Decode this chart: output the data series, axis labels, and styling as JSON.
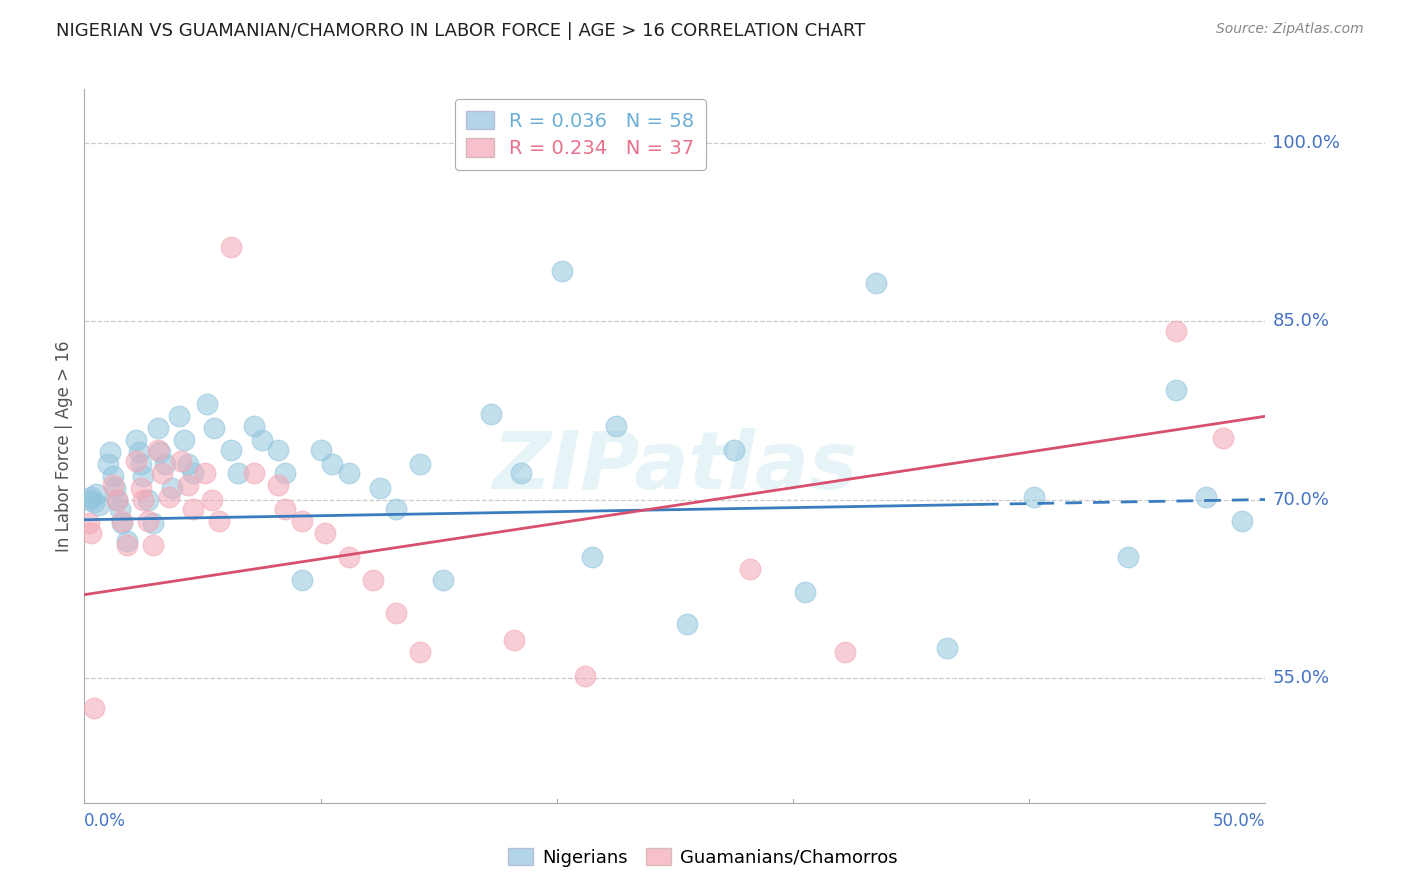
{
  "title": "NIGERIAN VS GUAMANIAN/CHAMORRO IN LABOR FORCE | AGE > 16 CORRELATION CHART",
  "source": "Source: ZipAtlas.com",
  "ylabel": "In Labor Force | Age > 16",
  "y_tick_labels": [
    "55.0%",
    "70.0%",
    "85.0%",
    "100.0%"
  ],
  "y_tick_values": [
    0.55,
    0.7,
    0.85,
    1.0
  ],
  "x_lim": [
    0.0,
    0.5
  ],
  "y_lim": [
    0.445,
    1.045
  ],
  "legend_entries": [
    {
      "label": "R = 0.036   N = 58",
      "color": "#6baed6"
    },
    {
      "label": "R = 0.234   N = 37",
      "color": "#e8708a"
    }
  ],
  "legend_labels_bottom": [
    "Nigerians",
    "Guamanians/Chamorros"
  ],
  "blue_color": "#92c5de",
  "pink_color": "#f4a7b5",
  "blue_line_color": "#3a7dbf",
  "pink_line_color": "#d94f6e",
  "watermark": "ZIPatlas",
  "nigerian_x": [
    0.002,
    0.003,
    0.004,
    0.005,
    0.006,
    0.01,
    0.011,
    0.012,
    0.013,
    0.014,
    0.015,
    0.016,
    0.018,
    0.022,
    0.023,
    0.024,
    0.025,
    0.027,
    0.029,
    0.031,
    0.032,
    0.034,
    0.037,
    0.04,
    0.042,
    0.044,
    0.046,
    0.052,
    0.055,
    0.062,
    0.065,
    0.072,
    0.075,
    0.082,
    0.085,
    0.092,
    0.1,
    0.105,
    0.112,
    0.125,
    0.132,
    0.142,
    0.152,
    0.172,
    0.185,
    0.202,
    0.215,
    0.225,
    0.255,
    0.275,
    0.305,
    0.335,
    0.365,
    0.402,
    0.442,
    0.462,
    0.475,
    0.49
  ],
  "nigerian_y": [
    0.7,
    0.702,
    0.698,
    0.705,
    0.695,
    0.73,
    0.74,
    0.72,
    0.71,
    0.7,
    0.692,
    0.68,
    0.665,
    0.75,
    0.74,
    0.73,
    0.72,
    0.7,
    0.68,
    0.76,
    0.74,
    0.73,
    0.71,
    0.77,
    0.75,
    0.73,
    0.722,
    0.78,
    0.76,
    0.742,
    0.722,
    0.762,
    0.75,
    0.742,
    0.722,
    0.632,
    0.742,
    0.73,
    0.722,
    0.71,
    0.692,
    0.73,
    0.632,
    0.772,
    0.722,
    0.892,
    0.652,
    0.762,
    0.595,
    0.742,
    0.622,
    0.882,
    0.575,
    0.702,
    0.652,
    0.792,
    0.702,
    0.682
  ],
  "guam_x": [
    0.002,
    0.003,
    0.004,
    0.012,
    0.014,
    0.016,
    0.018,
    0.022,
    0.024,
    0.025,
    0.027,
    0.029,
    0.031,
    0.033,
    0.036,
    0.041,
    0.044,
    0.046,
    0.051,
    0.054,
    0.057,
    0.062,
    0.072,
    0.082,
    0.085,
    0.092,
    0.102,
    0.112,
    0.122,
    0.132,
    0.142,
    0.182,
    0.212,
    0.282,
    0.322,
    0.462,
    0.482
  ],
  "guam_y": [
    0.68,
    0.672,
    0.525,
    0.712,
    0.7,
    0.682,
    0.662,
    0.732,
    0.71,
    0.7,
    0.682,
    0.662,
    0.742,
    0.722,
    0.702,
    0.732,
    0.712,
    0.692,
    0.722,
    0.7,
    0.682,
    0.912,
    0.722,
    0.712,
    0.692,
    0.682,
    0.672,
    0.652,
    0.632,
    0.605,
    0.572,
    0.582,
    0.552,
    0.642,
    0.572,
    0.842,
    0.752
  ],
  "blue_trendline_x": [
    0.0,
    0.38,
    0.38,
    0.5
  ],
  "blue_trendline_solid_end": 0.38,
  "blue_trendline_y_at_0": 0.683,
  "blue_trendline_y_at_50": 0.7,
  "pink_trendline_y_at_0": 0.62,
  "pink_trendline_y_at_50": 0.77
}
